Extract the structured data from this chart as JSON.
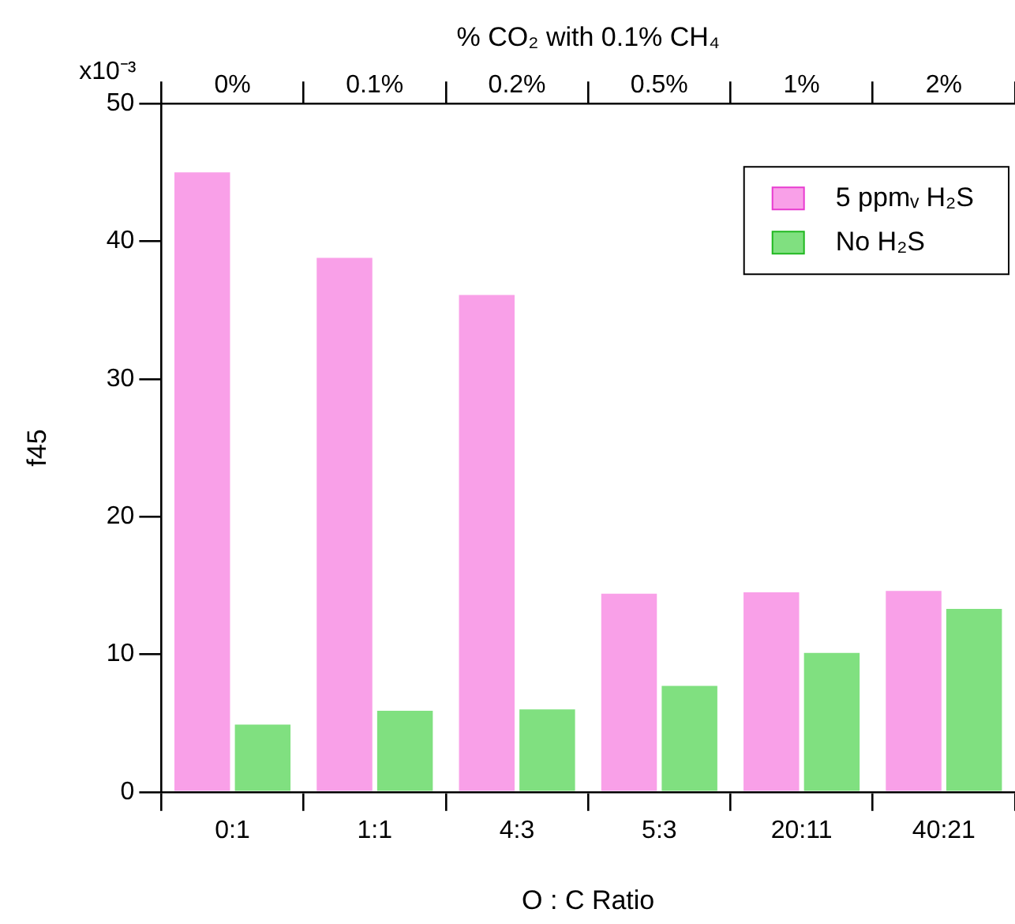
{
  "chart_data": {
    "type": "bar",
    "xlabel": "O : C Ratio",
    "ylabel": "f45",
    "x2label": "% CO₂ with 0.1% CH₄",
    "categories": [
      "0:1",
      "1:1",
      "4:3",
      "5:3",
      "20:11",
      "40:21"
    ],
    "series": [
      {
        "name": "5 ppmᵥ H₂S",
        "color": "#f9a0e8",
        "values": [
          45,
          38.8,
          36.1,
          14.4,
          14.5,
          14.6
        ]
      },
      {
        "name": "No H₂S",
        "color": "#80e080",
        "values": [
          4.9,
          5.9,
          6,
          7.7,
          10.1,
          13.3
        ]
      }
    ],
    "ylim": [
      0,
      50
    ],
    "yticks": [
      0,
      10,
      20,
      30,
      40,
      50
    ],
    "annotations": [
      "x10⁻³",
      "0%",
      "0.1%",
      "0.2%",
      "0.5%",
      "1%",
      "2%"
    ],
    "grid": false,
    "legend": "top right"
  }
}
